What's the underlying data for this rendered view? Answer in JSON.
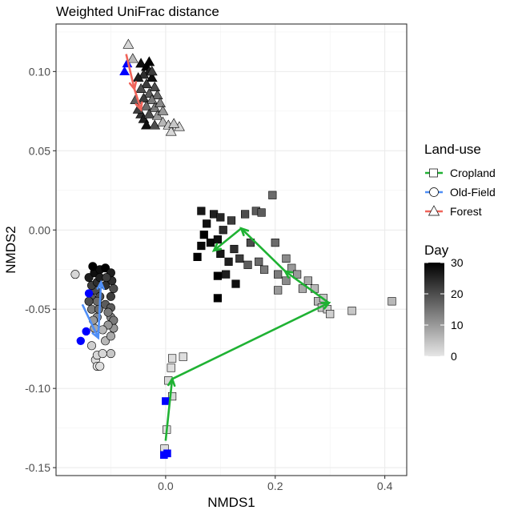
{
  "chart_data": {
    "type": "scatter",
    "title": "Weighted UniFrac distance",
    "xlabel": "NMDS1",
    "ylabel": "NMDS2",
    "xlim": [
      -0.2,
      0.44
    ],
    "ylim": [
      -0.155,
      0.13
    ],
    "x_ticks": [
      0.0,
      0.2,
      0.4
    ],
    "x_tick_labels": [
      "0.0",
      "0.2",
      "0.4"
    ],
    "y_ticks": [
      -0.15,
      -0.1,
      -0.05,
      0.0,
      0.05,
      0.1
    ],
    "y_tick_labels": [
      "-0.15",
      "-0.10",
      "-0.05",
      "0.00",
      "0.05",
      "0.10"
    ],
    "grid": true,
    "legend_position": "right",
    "legends": {
      "shape": {
        "title": "Land-use",
        "entries": [
          {
            "label": "Cropland",
            "shape": "square",
            "color": "#1fb233"
          },
          {
            "label": "Old-Field",
            "shape": "circle",
            "color": "#4f8ff7"
          },
          {
            "label": "Forest",
            "shape": "triangle",
            "color": "#f0645a"
          }
        ]
      },
      "fill": {
        "title": "Day",
        "min": 0,
        "max": 30,
        "ticks": [
          0,
          10,
          20,
          30
        ],
        "tick_labels": [
          "0",
          "10",
          "20",
          "30"
        ],
        "low_color": "#e6e6e6",
        "high_color": "#000000"
      }
    },
    "baseline_color": "#0000ff",
    "series": [
      {
        "name": "Cropland",
        "shape": "square",
        "line_color": "#1fb233",
        "trajectory": [
          [
            0.0,
            -0.133
          ],
          [
            0.012,
            -0.094
          ],
          [
            0.298,
            -0.046
          ],
          [
            0.218,
            -0.026
          ],
          [
            0.138,
            0.001
          ],
          [
            0.088,
            -0.013
          ]
        ],
        "points": [
          [
            0.0,
            -0.108,
            "b"
          ],
          [
            -0.003,
            -0.142,
            "b"
          ],
          [
            0.003,
            -0.141,
            "b"
          ],
          [
            -0.002,
            -0.138,
            1
          ],
          [
            0.002,
            -0.126,
            1
          ],
          [
            0.012,
            -0.105,
            2
          ],
          [
            0.005,
            -0.095,
            2
          ],
          [
            0.01,
            -0.087,
            1
          ],
          [
            0.012,
            -0.081,
            1
          ],
          [
            0.032,
            -0.08,
            1
          ],
          [
            0.065,
            0.012,
            27
          ],
          [
            0.075,
            0.004,
            28
          ],
          [
            0.088,
            0.01,
            26
          ],
          [
            0.1,
            0.008,
            25
          ],
          [
            0.105,
            0.0,
            24
          ],
          [
            0.12,
            0.006,
            22
          ],
          [
            0.145,
            0.01,
            20
          ],
          [
            0.165,
            0.012,
            18
          ],
          [
            0.175,
            0.011,
            18
          ],
          [
            0.195,
            0.022,
            16
          ],
          [
            0.07,
            -0.003,
            30
          ],
          [
            0.082,
            -0.008,
            29
          ],
          [
            0.095,
            -0.006,
            28
          ],
          [
            0.125,
            -0.012,
            24
          ],
          [
            0.1,
            -0.015,
            27
          ],
          [
            0.115,
            -0.02,
            26
          ],
          [
            0.135,
            -0.018,
            22
          ],
          [
            0.155,
            -0.008,
            20
          ],
          [
            0.15,
            -0.022,
            18
          ],
          [
            0.17,
            -0.02,
            16
          ],
          [
            0.18,
            -0.025,
            14
          ],
          [
            0.2,
            -0.008,
            16
          ],
          [
            0.205,
            -0.028,
            14
          ],
          [
            0.22,
            -0.018,
            12
          ],
          [
            0.23,
            -0.024,
            10
          ],
          [
            0.24,
            -0.028,
            10
          ],
          [
            0.25,
            -0.037,
            8
          ],
          [
            0.22,
            -0.032,
            12
          ],
          [
            0.205,
            -0.038,
            10
          ],
          [
            0.26,
            -0.032,
            8
          ],
          [
            0.272,
            -0.037,
            6
          ],
          [
            0.278,
            -0.045,
            6
          ],
          [
            0.288,
            -0.043,
            4
          ],
          [
            0.285,
            -0.049,
            4
          ],
          [
            0.295,
            -0.05,
            3
          ],
          [
            0.3,
            -0.053,
            3
          ],
          [
            0.34,
            -0.051,
            4
          ],
          [
            0.413,
            -0.045,
            6
          ],
          [
            0.058,
            -0.017,
            30
          ],
          [
            0.095,
            -0.029,
            30
          ],
          [
            0.128,
            -0.034,
            28
          ],
          [
            0.11,
            -0.028,
            26
          ],
          [
            0.095,
            -0.043,
            30
          ],
          [
            0.065,
            -0.01,
            29
          ]
        ]
      },
      {
        "name": "Old-Field",
        "shape": "circle",
        "line_color": "#4f8ff7",
        "trajectory": [
          [
            -0.152,
            -0.047
          ],
          [
            -0.123,
            -0.068
          ],
          [
            -0.118,
            -0.033
          ]
        ],
        "points": [
          [
            -0.155,
            -0.07,
            "b"
          ],
          [
            -0.145,
            -0.064,
            "b"
          ],
          [
            -0.14,
            -0.04,
            "b"
          ],
          [
            -0.165,
            -0.028,
            2
          ],
          [
            -0.128,
            -0.082,
            1
          ],
          [
            -0.125,
            -0.086,
            1
          ],
          [
            -0.12,
            -0.086,
            1
          ],
          [
            -0.125,
            -0.079,
            2
          ],
          [
            -0.115,
            -0.078,
            2
          ],
          [
            -0.1,
            -0.078,
            4
          ],
          [
            -0.135,
            -0.073,
            3
          ],
          [
            -0.11,
            -0.07,
            6
          ],
          [
            -0.1,
            -0.067,
            8
          ],
          [
            -0.13,
            -0.062,
            8
          ],
          [
            -0.095,
            -0.062,
            10
          ],
          [
            -0.125,
            -0.055,
            12
          ],
          [
            -0.1,
            -0.055,
            12
          ],
          [
            -0.095,
            -0.057,
            14
          ],
          [
            -0.135,
            -0.05,
            14
          ],
          [
            -0.122,
            -0.05,
            16
          ],
          [
            -0.11,
            -0.047,
            18
          ],
          [
            -0.1,
            -0.049,
            18
          ],
          [
            -0.135,
            -0.043,
            18
          ],
          [
            -0.128,
            -0.038,
            20
          ],
          [
            -0.12,
            -0.042,
            20
          ],
          [
            -0.1,
            -0.042,
            22
          ],
          [
            -0.135,
            -0.035,
            22
          ],
          [
            -0.125,
            -0.033,
            24
          ],
          [
            -0.11,
            -0.035,
            24
          ],
          [
            -0.098,
            -0.032,
            24
          ],
          [
            -0.14,
            -0.03,
            26
          ],
          [
            -0.13,
            -0.027,
            28
          ],
          [
            -0.12,
            -0.025,
            28
          ],
          [
            -0.11,
            -0.024,
            30
          ],
          [
            -0.1,
            -0.027,
            26
          ],
          [
            -0.133,
            -0.023,
            30
          ],
          [
            -0.12,
            -0.03,
            26
          ],
          [
            -0.108,
            -0.03,
            22
          ],
          [
            -0.125,
            -0.045,
            16
          ],
          [
            -0.132,
            -0.057,
            10
          ],
          [
            -0.105,
            -0.06,
            10
          ],
          [
            -0.115,
            -0.063,
            6
          ],
          [
            -0.14,
            -0.045,
            20
          ],
          [
            -0.095,
            -0.037,
            20
          ],
          [
            -0.105,
            -0.052,
            14
          ]
        ]
      },
      {
        "name": "Forest",
        "shape": "triangle",
        "line_color": "#f0645a",
        "trajectory": [
          [
            -0.072,
            0.111
          ],
          [
            -0.057,
            0.089
          ],
          [
            -0.045,
            0.076
          ]
        ],
        "points": [
          [
            -0.075,
            0.1,
            "b"
          ],
          [
            -0.07,
            0.105,
            "b"
          ],
          [
            -0.068,
            0.117,
            2
          ],
          [
            -0.06,
            0.108,
            6
          ],
          [
            -0.045,
            0.105,
            28
          ],
          [
            -0.035,
            0.103,
            30
          ],
          [
            -0.03,
            0.1,
            26
          ],
          [
            -0.04,
            0.098,
            24
          ],
          [
            -0.025,
            0.096,
            28
          ],
          [
            -0.035,
            0.092,
            22
          ],
          [
            -0.045,
            0.089,
            20
          ],
          [
            -0.02,
            0.09,
            20
          ],
          [
            -0.03,
            0.086,
            18
          ],
          [
            -0.04,
            0.083,
            22
          ],
          [
            -0.015,
            0.085,
            16
          ],
          [
            -0.025,
            0.082,
            14
          ],
          [
            -0.035,
            0.078,
            16
          ],
          [
            -0.045,
            0.073,
            24
          ],
          [
            -0.02,
            0.077,
            14
          ],
          [
            -0.01,
            0.08,
            12
          ],
          [
            -0.04,
            0.07,
            26
          ],
          [
            -0.03,
            0.073,
            20
          ],
          [
            -0.015,
            0.072,
            10
          ],
          [
            -0.005,
            0.075,
            10
          ],
          [
            -0.035,
            0.066,
            28
          ],
          [
            -0.02,
            0.066,
            20
          ],
          [
            -0.005,
            0.068,
            6
          ],
          [
            0.005,
            0.066,
            4
          ],
          [
            0.01,
            0.062,
            2
          ],
          [
            0.025,
            0.065,
            2
          ],
          [
            0.015,
            0.067,
            4
          ],
          [
            -0.05,
            0.076,
            22
          ],
          [
            -0.055,
            0.082,
            18
          ],
          [
            -0.025,
            0.1,
            22
          ],
          [
            -0.03,
            0.106,
            30
          ],
          [
            -0.05,
            0.096,
            26
          ]
        ]
      }
    ]
  }
}
